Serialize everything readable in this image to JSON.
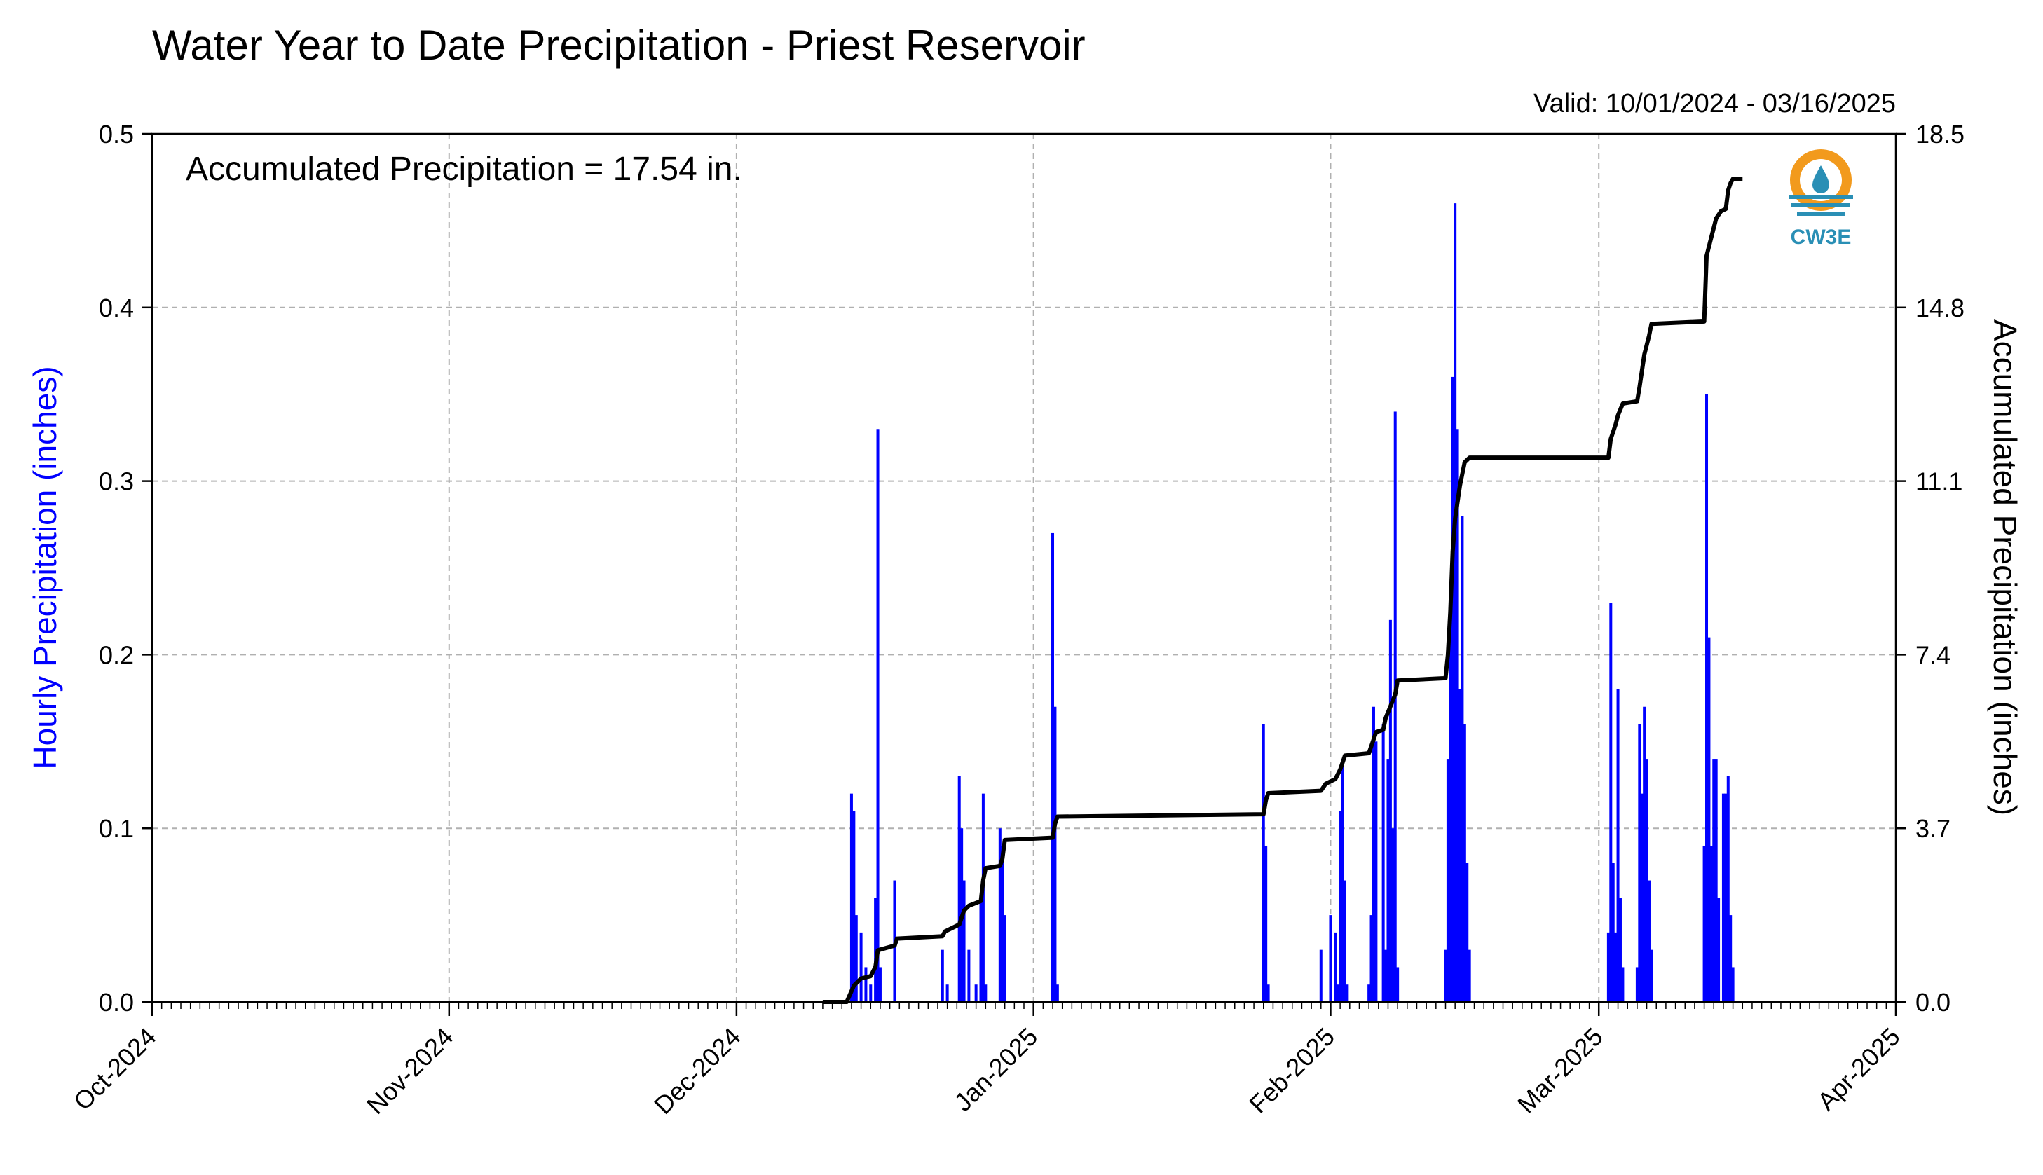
{
  "chart_data": {
    "type": "bar+line",
    "title": "Water Year to Date Precipitation - Priest Reservoir",
    "subtitle": "Valid: 10/01/2024 - 03/16/2025",
    "annotation": "Accumulated Precipitation = 17.54 in.",
    "logo_text": "CW3E",
    "ylabel_left": "Hourly Precipitation (inches)",
    "ylabel_right": "Accumulated Precipitation (inches)",
    "xlim": [
      "2024-10-01",
      "2025-04-01"
    ],
    "ylim_left": [
      0,
      0.5
    ],
    "ylim_right": [
      0,
      18.5
    ],
    "grid": true,
    "x_ticks": [
      {
        "date": "2024-10-01",
        "label": "Oct-2024"
      },
      {
        "date": "2024-11-01",
        "label": "Nov-2024"
      },
      {
        "date": "2024-12-01",
        "label": "Dec-2024"
      },
      {
        "date": "2025-01-01",
        "label": "Jan-2025"
      },
      {
        "date": "2025-02-01",
        "label": "Feb-2025"
      },
      {
        "date": "2025-03-01",
        "label": "Mar-2025"
      },
      {
        "date": "2025-04-01",
        "label": "Apr-2025"
      }
    ],
    "y_ticks_left": [
      "0.0",
      "0.1",
      "0.2",
      "0.3",
      "0.4",
      "0.5"
    ],
    "y_ticks_right": [
      "0.0",
      "3.7",
      "7.4",
      "11.1",
      "14.8",
      "18.5"
    ],
    "colors": {
      "hourly": "#0000ff",
      "accumulated": "#000000",
      "grid": "#b0b0b0"
    },
    "hourly_precip": [
      [
        "2024-12-13 00:00",
        0.12
      ],
      [
        "2024-12-13 06:00",
        0.11
      ],
      [
        "2024-12-13 12:00",
        0.05
      ],
      [
        "2024-12-14 00:00",
        0.04
      ],
      [
        "2024-12-14 12:00",
        0.02
      ],
      [
        "2024-12-15 00:00",
        0.01
      ],
      [
        "2024-12-15 12:00",
        0.06
      ],
      [
        "2024-12-15 18:00",
        0.33
      ],
      [
        "2024-12-16 00:00",
        0.02
      ],
      [
        "2024-12-17 12:00",
        0.07
      ],
      [
        "2024-12-22 12:00",
        0.03
      ],
      [
        "2024-12-23 00:00",
        0.01
      ],
      [
        "2024-12-24 06:00",
        0.13
      ],
      [
        "2024-12-24 12:00",
        0.1
      ],
      [
        "2024-12-24 18:00",
        0.07
      ],
      [
        "2024-12-25 06:00",
        0.03
      ],
      [
        "2024-12-26 00:00",
        0.01
      ],
      [
        "2024-12-26 12:00",
        0.06
      ],
      [
        "2024-12-26 18:00",
        0.12
      ],
      [
        "2024-12-27 00:00",
        0.01
      ],
      [
        "2024-12-28 12:00",
        0.1
      ],
      [
        "2024-12-28 18:00",
        0.09
      ],
      [
        "2024-12-29 00:00",
        0.05
      ],
      [
        "2025-01-03 00:00",
        0.27
      ],
      [
        "2025-01-03 06:00",
        0.17
      ],
      [
        "2025-01-03 12:00",
        0.01
      ],
      [
        "2025-01-25 00:00",
        0.16
      ],
      [
        "2025-01-25 06:00",
        0.09
      ],
      [
        "2025-01-25 12:00",
        0.01
      ],
      [
        "2025-01-31 00:00",
        0.03
      ],
      [
        "2025-02-01 00:00",
        0.05
      ],
      [
        "2025-02-01 12:00",
        0.04
      ],
      [
        "2025-02-01 18:00",
        0.01
      ],
      [
        "2025-02-02 00:00",
        0.11
      ],
      [
        "2025-02-02 06:00",
        0.14
      ],
      [
        "2025-02-02 12:00",
        0.07
      ],
      [
        "2025-02-02 18:00",
        0.01
      ],
      [
        "2025-02-05 00:00",
        0.01
      ],
      [
        "2025-02-05 06:00",
        0.05
      ],
      [
        "2025-02-05 12:00",
        0.17
      ],
      [
        "2025-02-05 18:00",
        0.15
      ],
      [
        "2025-02-06 12:00",
        0.16
      ],
      [
        "2025-02-06 18:00",
        0.03
      ],
      [
        "2025-02-07 00:00",
        0.14
      ],
      [
        "2025-02-07 06:00",
        0.22
      ],
      [
        "2025-02-07 12:00",
        0.1
      ],
      [
        "2025-02-07 18:00",
        0.34
      ],
      [
        "2025-02-08 00:00",
        0.02
      ],
      [
        "2025-02-13 00:00",
        0.03
      ],
      [
        "2025-02-13 06:00",
        0.14
      ],
      [
        "2025-02-13 12:00",
        0.22
      ],
      [
        "2025-02-13 18:00",
        0.36
      ],
      [
        "2025-02-14 00:00",
        0.46
      ],
      [
        "2025-02-14 06:00",
        0.33
      ],
      [
        "2025-02-14 12:00",
        0.18
      ],
      [
        "2025-02-14 18:00",
        0.28
      ],
      [
        "2025-02-15 00:00",
        0.16
      ],
      [
        "2025-02-15 06:00",
        0.08
      ],
      [
        "2025-02-15 12:00",
        0.03
      ],
      [
        "2025-03-02 00:00",
        0.04
      ],
      [
        "2025-03-02 06:00",
        0.23
      ],
      [
        "2025-03-02 12:00",
        0.08
      ],
      [
        "2025-03-02 18:00",
        0.04
      ],
      [
        "2025-03-03 00:00",
        0.18
      ],
      [
        "2025-03-03 06:00",
        0.06
      ],
      [
        "2025-03-03 12:00",
        0.02
      ],
      [
        "2025-03-05 00:00",
        0.02
      ],
      [
        "2025-03-05 06:00",
        0.16
      ],
      [
        "2025-03-05 12:00",
        0.12
      ],
      [
        "2025-03-05 18:00",
        0.17
      ],
      [
        "2025-03-06 00:00",
        0.14
      ],
      [
        "2025-03-06 06:00",
        0.07
      ],
      [
        "2025-03-06 12:00",
        0.03
      ],
      [
        "2025-03-12 00:00",
        0.09
      ],
      [
        "2025-03-12 06:00",
        0.35
      ],
      [
        "2025-03-12 12:00",
        0.21
      ],
      [
        "2025-03-12 18:00",
        0.09
      ],
      [
        "2025-03-13 00:00",
        0.14
      ],
      [
        "2025-03-13 06:00",
        0.14
      ],
      [
        "2025-03-13 12:00",
        0.06
      ],
      [
        "2025-03-14 00:00",
        0.12
      ],
      [
        "2025-03-14 06:00",
        0.12
      ],
      [
        "2025-03-14 12:00",
        0.13
      ],
      [
        "2025-03-14 18:00",
        0.05
      ],
      [
        "2025-03-15 00:00",
        0.02
      ]
    ],
    "accumulated_precip": [
      [
        "2024-12-10 00:00",
        0.0
      ],
      [
        "2024-12-12 12:00",
        0.0
      ],
      [
        "2024-12-13 06:00",
        0.35
      ],
      [
        "2024-12-14 00:00",
        0.5
      ],
      [
        "2024-12-15 00:00",
        0.55
      ],
      [
        "2024-12-15 12:00",
        0.75
      ],
      [
        "2024-12-15 18:00",
        1.1
      ],
      [
        "2024-12-17 12:00",
        1.2
      ],
      [
        "2024-12-17 18:00",
        1.35
      ],
      [
        "2024-12-22 12:00",
        1.4
      ],
      [
        "2024-12-22 18:00",
        1.5
      ],
      [
        "2024-12-24 06:00",
        1.65
      ],
      [
        "2024-12-24 18:00",
        1.95
      ],
      [
        "2024-12-25 06:00",
        2.05
      ],
      [
        "2024-12-26 12:00",
        2.15
      ],
      [
        "2024-12-26 18:00",
        2.6
      ],
      [
        "2024-12-27 00:00",
        2.85
      ],
      [
        "2024-12-28 12:00",
        2.9
      ],
      [
        "2024-12-28 18:00",
        3.05
      ],
      [
        "2024-12-29 00:00",
        3.45
      ],
      [
        "2025-01-03 00:00",
        3.5
      ],
      [
        "2025-01-03 06:00",
        3.8
      ],
      [
        "2025-01-03 12:00",
        3.95
      ],
      [
        "2025-01-25 00:00",
        4.0
      ],
      [
        "2025-01-25 06:00",
        4.3
      ],
      [
        "2025-01-25 12:00",
        4.45
      ],
      [
        "2025-01-31 00:00",
        4.5
      ],
      [
        "2025-01-31 12:00",
        4.65
      ],
      [
        "2025-02-01 12:00",
        4.75
      ],
      [
        "2025-02-02 00:00",
        4.95
      ],
      [
        "2025-02-02 12:00",
        5.25
      ],
      [
        "2025-02-05 00:00",
        5.3
      ],
      [
        "2025-02-05 12:00",
        5.6
      ],
      [
        "2025-02-05 18:00",
        5.75
      ],
      [
        "2025-02-06 12:00",
        5.8
      ],
      [
        "2025-02-06 18:00",
        6.05
      ],
      [
        "2025-02-07 06:00",
        6.3
      ],
      [
        "2025-02-07 18:00",
        6.55
      ],
      [
        "2025-02-08 00:00",
        6.85
      ],
      [
        "2025-02-13 00:00",
        6.9
      ],
      [
        "2025-02-13 06:00",
        7.4
      ],
      [
        "2025-02-13 12:00",
        8.3
      ],
      [
        "2025-02-13 18:00",
        9.6
      ],
      [
        "2025-02-14 00:00",
        10.3
      ],
      [
        "2025-02-14 12:00",
        11.0
      ],
      [
        "2025-02-15 00:00",
        11.5
      ],
      [
        "2025-02-15 12:00",
        11.6
      ],
      [
        "2025-03-02 00:00",
        11.6
      ],
      [
        "2025-03-02 06:00",
        12.0
      ],
      [
        "2025-03-02 18:00",
        12.3
      ],
      [
        "2025-03-03 00:00",
        12.5
      ],
      [
        "2025-03-03 12:00",
        12.75
      ],
      [
        "2025-03-05 00:00",
        12.8
      ],
      [
        "2025-03-05 06:00",
        13.1
      ],
      [
        "2025-03-05 18:00",
        13.8
      ],
      [
        "2025-03-06 06:00",
        14.2
      ],
      [
        "2025-03-06 12:00",
        14.45
      ],
      [
        "2025-03-12 00:00",
        14.5
      ],
      [
        "2025-03-12 06:00",
        15.9
      ],
      [
        "2025-03-12 18:00",
        16.3
      ],
      [
        "2025-03-13 06:00",
        16.7
      ],
      [
        "2025-03-13 18:00",
        16.85
      ],
      [
        "2025-03-14 06:00",
        16.9
      ],
      [
        "2025-03-14 12:00",
        17.3
      ],
      [
        "2025-03-14 18:00",
        17.45
      ],
      [
        "2025-03-15 00:00",
        17.54
      ],
      [
        "2025-03-16 00:00",
        17.54
      ]
    ]
  }
}
